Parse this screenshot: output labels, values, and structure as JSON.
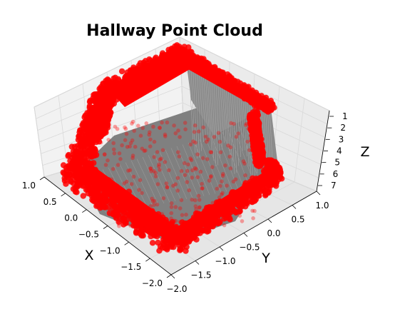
{
  "chart_data": {
    "type": "scatter",
    "projection": "3d",
    "title": "Hallway Point Cloud",
    "xlabel": "X",
    "ylabel": "Y",
    "zlabel": "Z",
    "x_ticks": [
      "1.0",
      "0.5",
      "0.0",
      "−0.5",
      "−1.0",
      "−1.5",
      "−2.0"
    ],
    "y_ticks": [
      "−2.0",
      "−1.5",
      "−1.0",
      "−0.5",
      "0.0",
      "0.5",
      "1.0"
    ],
    "z_ticks": [
      "1",
      "2",
      "3",
      "4",
      "5",
      "6",
      "7"
    ],
    "xlim": [
      -2.0,
      1.0
    ],
    "ylim": [
      -2.0,
      1.0
    ],
    "zlim": [
      1,
      7
    ],
    "z_inverted": true,
    "grid": true,
    "legend": "none",
    "colors": {
      "points": "#ff0000",
      "surface": "#808080",
      "pane": "#f2f2f2",
      "grid": "#d9d9d9"
    },
    "series": [
      {
        "values": []
      }
    ]
  }
}
